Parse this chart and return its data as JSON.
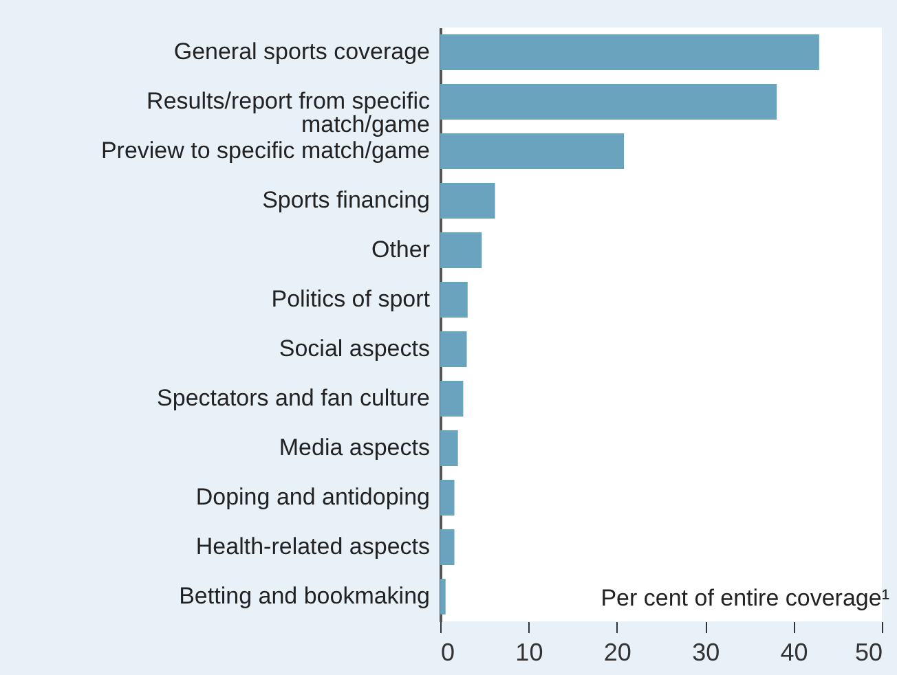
{
  "chart_data": {
    "type": "bar",
    "orientation": "horizontal",
    "xlabel": "Per cent of entire coverage¹",
    "categories": [
      "General sports coverage",
      "Results/report from specific match/game",
      "Preview to specific match/game",
      "Sports financing",
      "Other",
      "Politics of sport",
      "Social aspects",
      "Spectators and fan culture",
      "Media aspects",
      "Doping and antidoping",
      "Health-related aspects",
      "Betting and bookmaking"
    ],
    "values": [
      42.9,
      38.1,
      20.8,
      6.2,
      4.7,
      3.1,
      3.0,
      2.6,
      2.0,
      1.6,
      1.6,
      0.6
    ],
    "color": "#6aa3bd",
    "xlim": [
      0,
      50
    ],
    "xticks": [
      0,
      10,
      20,
      30,
      40,
      50
    ],
    "grid": false
  }
}
